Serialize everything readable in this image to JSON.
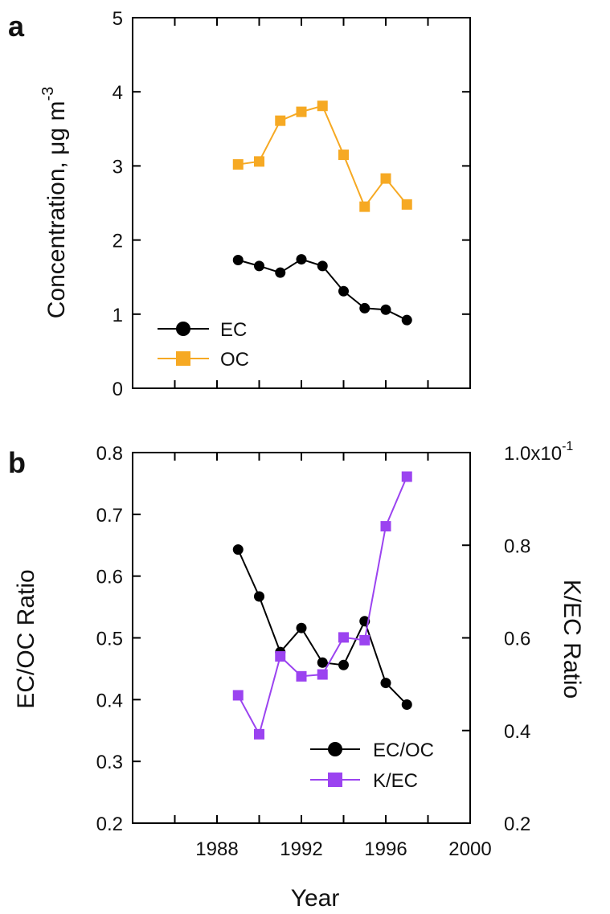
{
  "chart_data": [
    {
      "panel": "a",
      "type": "line",
      "title": "",
      "xlabel": "",
      "ylabel": "Concentration, μg m",
      "ylabel_superscript": "-3",
      "xlim": [
        1984,
        2000
      ],
      "ylim": [
        0,
        5
      ],
      "yticks": [
        "0",
        "1",
        "2",
        "3",
        "4",
        "5"
      ],
      "x": [
        1989,
        1990,
        1991,
        1992,
        1993,
        1994,
        1995,
        1996,
        1997
      ],
      "series": [
        {
          "name": "EC",
          "marker": "circle",
          "color": "#000000",
          "values": [
            1.73,
            1.65,
            1.56,
            1.74,
            1.65,
            1.31,
            1.08,
            1.06,
            0.92
          ]
        },
        {
          "name": "OC",
          "marker": "square",
          "color": "#f6a923",
          "values": [
            3.02,
            3.06,
            3.61,
            3.73,
            3.81,
            3.15,
            2.45,
            2.83,
            2.48
          ]
        }
      ],
      "legend_position": "bottom-left",
      "grid": false
    },
    {
      "panel": "b",
      "type": "line",
      "title": "",
      "xlabel": "Year",
      "ylabel": "EC/OC Ratio",
      "y2label": "K/EC Ratio",
      "xlim": [
        1984,
        2000
      ],
      "xticks": [
        "1988",
        "1992",
        "1996",
        "2000"
      ],
      "ylim": [
        0.2,
        0.8
      ],
      "yticks": [
        "0.2",
        "0.3",
        "0.4",
        "0.5",
        "0.6",
        "0.7",
        "0.8"
      ],
      "y2lim": [
        0.2,
        1.0
      ],
      "y2ticks": [
        "0.2",
        "0.4",
        "0.6",
        "0.8",
        "1.0x10"
      ],
      "y2tick_top_superscript": "-1",
      "x": [
        1989,
        1990,
        1991,
        1992,
        1993,
        1994,
        1995,
        1996,
        1997
      ],
      "series": [
        {
          "name": "EC/OC",
          "marker": "circle",
          "color": "#000000",
          "axis": "left",
          "values": [
            0.643,
            0.567,
            0.477,
            0.516,
            0.46,
            0.456,
            0.527,
            0.427,
            0.392
          ]
        },
        {
          "name": "K/EC",
          "marker": "square",
          "color": "#9b43f0",
          "axis": "right",
          "values": [
            0.476,
            0.392,
            0.56,
            0.517,
            0.521,
            0.601,
            0.595,
            0.841,
            0.948
          ]
        }
      ],
      "legend_position": "bottom-right",
      "grid": false
    }
  ]
}
